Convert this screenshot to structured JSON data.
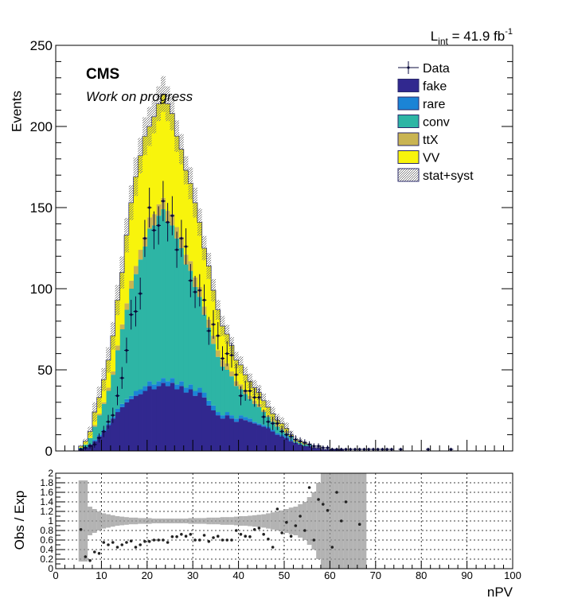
{
  "header": {
    "lumi_prefix": "L",
    "lumi_sub": "int",
    "lumi_value": " = 41.9 fb",
    "lumi_exp": "-1"
  },
  "labels": {
    "cms": "CMS",
    "wip": "Work on progress"
  },
  "colors": {
    "fake": "#31288f",
    "rare": "#1b84d6",
    "conv": "#2db5a5",
    "ttX": "#c9b452",
    "VV": "#f8f40c",
    "data": "#0a0a3c",
    "band": "#9a9a9a"
  },
  "chart_data": [
    {
      "type": "bar",
      "panel": "main",
      "ylabel": "Events",
      "xlabel": "",
      "xlim": [
        0,
        100
      ],
      "ylim": [
        0,
        250
      ],
      "yticks": [
        0,
        50,
        100,
        150,
        200,
        250
      ],
      "legend_position": "top-right",
      "legend": [
        {
          "key": "data",
          "label": "Data"
        },
        {
          "key": "fake",
          "label": "fake"
        },
        {
          "key": "rare",
          "label": "rare"
        },
        {
          "key": "conv",
          "label": "conv"
        },
        {
          "key": "ttX",
          "label": "ttX"
        },
        {
          "key": "VV",
          "label": "VV"
        },
        {
          "key": "band",
          "label": "stat+syst"
        }
      ],
      "bin_width": 1,
      "x": [
        4,
        5,
        6,
        7,
        8,
        9,
        10,
        11,
        12,
        13,
        14,
        15,
        16,
        17,
        18,
        19,
        20,
        21,
        22,
        23,
        24,
        25,
        26,
        27,
        28,
        29,
        30,
        31,
        32,
        33,
        34,
        35,
        36,
        37,
        38,
        39,
        40,
        41,
        42,
        43,
        44,
        45,
        46,
        47,
        48,
        49,
        50,
        51,
        52,
        53,
        54,
        55,
        56,
        57,
        58,
        59,
        60,
        61,
        62,
        63,
        64,
        65,
        66,
        67,
        68,
        69,
        70
      ],
      "series": [
        {
          "name": "fake",
          "values": [
            0,
            1,
            2,
            4,
            6,
            9,
            12,
            16,
            20,
            24,
            27,
            30,
            32,
            34,
            35,
            37,
            40,
            38,
            40,
            42,
            40,
            42,
            38,
            40,
            36,
            38,
            34,
            36,
            33,
            28,
            25,
            22,
            20,
            22,
            20,
            18,
            20,
            19,
            18,
            17,
            16,
            15,
            14,
            12,
            10,
            9,
            8,
            6,
            5,
            4,
            3,
            3,
            2,
            2,
            1,
            1,
            1,
            1,
            1,
            0,
            0,
            0,
            0,
            0,
            0,
            0,
            0
          ]
        },
        {
          "name": "rare",
          "values": [
            0,
            0,
            0,
            0,
            1,
            1,
            1,
            1,
            1,
            2,
            2,
            2,
            2,
            3,
            3,
            3,
            3,
            3,
            3,
            3,
            3,
            3,
            3,
            3,
            3,
            3,
            3,
            3,
            3,
            3,
            3,
            2,
            2,
            2,
            2,
            2,
            2,
            2,
            2,
            1,
            1,
            1,
            1,
            1,
            1,
            1,
            1,
            1,
            0,
            0,
            0,
            0,
            0,
            0,
            0,
            0,
            0,
            0,
            0,
            0,
            0,
            0,
            0,
            0,
            0,
            0,
            0
          ]
        },
        {
          "name": "conv",
          "values": [
            0,
            1,
            2,
            4,
            8,
            12,
            16,
            20,
            26,
            36,
            46,
            55,
            66,
            72,
            80,
            86,
            94,
            98,
            102,
            104,
            98,
            94,
            90,
            82,
            76,
            70,
            64,
            56,
            48,
            45,
            38,
            34,
            30,
            26,
            24,
            20,
            16,
            14,
            12,
            11,
            10,
            8,
            6,
            5,
            4,
            3,
            2,
            2,
            1,
            1,
            1,
            1,
            0,
            0,
            0,
            0,
            0,
            0,
            0,
            0,
            0,
            0,
            0,
            0,
            0,
            0,
            0
          ]
        },
        {
          "name": "ttX",
          "values": [
            0,
            0,
            0,
            0,
            1,
            1,
            1,
            2,
            2,
            3,
            3,
            4,
            5,
            5,
            6,
            6,
            7,
            7,
            7,
            7,
            7,
            7,
            7,
            7,
            6,
            6,
            6,
            6,
            5,
            5,
            5,
            4,
            4,
            4,
            3,
            3,
            3,
            2,
            2,
            2,
            2,
            1,
            1,
            1,
            1,
            1,
            1,
            0,
            0,
            0,
            0,
            0,
            0,
            0,
            0,
            0,
            0,
            0,
            0,
            0,
            0,
            0,
            0,
            0,
            0,
            0,
            0
          ]
        },
        {
          "name": "VV",
          "values": [
            0,
            1,
            2,
            4,
            8,
            10,
            14,
            17,
            22,
            28,
            32,
            42,
            48,
            55,
            58,
            62,
            56,
            60,
            62,
            64,
            66,
            62,
            56,
            54,
            52,
            48,
            46,
            40,
            36,
            33,
            28,
            25,
            21,
            18,
            16,
            13,
            12,
            10,
            9,
            8,
            7,
            6,
            5,
            4,
            3,
            3,
            2,
            1,
            1,
            1,
            1,
            0,
            0,
            0,
            0,
            0,
            0,
            0,
            0,
            0,
            0,
            0,
            0,
            0,
            0,
            0,
            0
          ]
        }
      ],
      "data": {
        "x": [
          5,
          6,
          7,
          8,
          9,
          10,
          11,
          12,
          13,
          14,
          15,
          16,
          17,
          18,
          19,
          20,
          21,
          22,
          23,
          24,
          25,
          26,
          27,
          28,
          29,
          30,
          31,
          32,
          33,
          34,
          35,
          36,
          37,
          38,
          39,
          40,
          41,
          42,
          43,
          44,
          45,
          46,
          47,
          48,
          49,
          50,
          51,
          52,
          53,
          54,
          55,
          56,
          57,
          58,
          59,
          60,
          61,
          62,
          63,
          64,
          65,
          66,
          67,
          68,
          69,
          70,
          71,
          72,
          73,
          75,
          81,
          86
        ],
        "y": [
          1,
          2,
          3,
          4,
          8,
          12,
          18,
          22,
          34,
          45,
          62,
          84,
          86,
          97,
          131,
          150,
          136,
          139,
          154,
          141,
          145,
          124,
          131,
          126,
          105,
          98,
          99,
          93,
          74,
          78,
          71,
          57,
          60,
          59,
          47,
          34,
          37,
          37,
          33,
          33,
          21,
          18,
          17,
          17,
          12,
          10,
          9,
          7,
          6,
          5,
          4,
          3,
          3,
          2,
          2,
          1,
          1,
          1,
          1,
          1,
          1,
          1,
          1,
          1,
          1,
          1,
          1,
          1,
          1,
          1,
          1,
          1
        ]
      }
    },
    {
      "type": "scatter",
      "panel": "ratio",
      "ylabel": "Obs / Exp",
      "xlabel": "nPV",
      "xlim": [
        0,
        100
      ],
      "ylim": [
        0,
        2
      ],
      "yticks": [
        0,
        0.2,
        0.4,
        0.6,
        0.8,
        1,
        1.2,
        1.4,
        1.6,
        1.8,
        2
      ],
      "xticks": [
        0,
        10,
        20,
        30,
        40,
        50,
        60,
        70,
        80,
        90,
        100
      ],
      "x": [
        5,
        6,
        7,
        8,
        9,
        10,
        11,
        12,
        13,
        14,
        15,
        16,
        17,
        18,
        19,
        20,
        21,
        22,
        23,
        24,
        25,
        26,
        27,
        28,
        29,
        30,
        31,
        32,
        33,
        34,
        35,
        36,
        37,
        38,
        39,
        40,
        41,
        42,
        43,
        44,
        45,
        46,
        47,
        48,
        49,
        50,
        51,
        52,
        53,
        54,
        55,
        56,
        57,
        58,
        59,
        60,
        61,
        62,
        63,
        66
      ],
      "values": [
        0.82,
        0.25,
        0.17,
        0.35,
        0.32,
        0.55,
        0.5,
        0.55,
        0.45,
        0.5,
        0.55,
        0.58,
        0.45,
        0.5,
        0.57,
        0.57,
        0.6,
        0.6,
        0.6,
        0.55,
        0.67,
        0.67,
        0.72,
        0.68,
        0.72,
        0.6,
        0.6,
        0.7,
        0.57,
        0.65,
        0.68,
        0.6,
        0.6,
        0.6,
        0.8,
        0.72,
        0.68,
        0.67,
        0.82,
        0.85,
        0.72,
        0.62,
        0.45,
        1.25,
        0.75,
        0.97,
        0.68,
        0.9,
        1.1,
        0.8,
        1.7,
        0.6,
        1.45,
        1.35,
        1.22,
        0.45,
        1.6,
        1.0,
        1.4,
        0.93
      ],
      "band_x": [
        5,
        6,
        7,
        8,
        9,
        10,
        11,
        12,
        13,
        14,
        15,
        16,
        17,
        18,
        19,
        20,
        21,
        22,
        23,
        24,
        25,
        26,
        27,
        28,
        29,
        30,
        31,
        32,
        33,
        34,
        35,
        36,
        37,
        38,
        39,
        40,
        41,
        42,
        43,
        44,
        45,
        46,
        47,
        48,
        49,
        50,
        51,
        52,
        53,
        54,
        55,
        56,
        57,
        58,
        59,
        60,
        61,
        62,
        63,
        64,
        65,
        66,
        67
      ],
      "band_half": [
        0.85,
        0.85,
        0.3,
        0.25,
        0.2,
        0.16,
        0.14,
        0.12,
        0.1,
        0.09,
        0.08,
        0.07,
        0.07,
        0.06,
        0.06,
        0.06,
        0.05,
        0.05,
        0.05,
        0.05,
        0.05,
        0.05,
        0.05,
        0.05,
        0.06,
        0.06,
        0.06,
        0.06,
        0.07,
        0.07,
        0.07,
        0.08,
        0.08,
        0.08,
        0.09,
        0.1,
        0.1,
        0.11,
        0.12,
        0.13,
        0.14,
        0.16,
        0.18,
        0.2,
        0.22,
        0.25,
        0.28,
        0.3,
        0.35,
        0.4,
        0.5,
        0.6,
        0.8,
        1.0,
        1.0,
        1.0,
        1.0,
        1.0,
        1.0,
        1.0,
        1.0,
        1.0,
        1.0
      ]
    }
  ]
}
